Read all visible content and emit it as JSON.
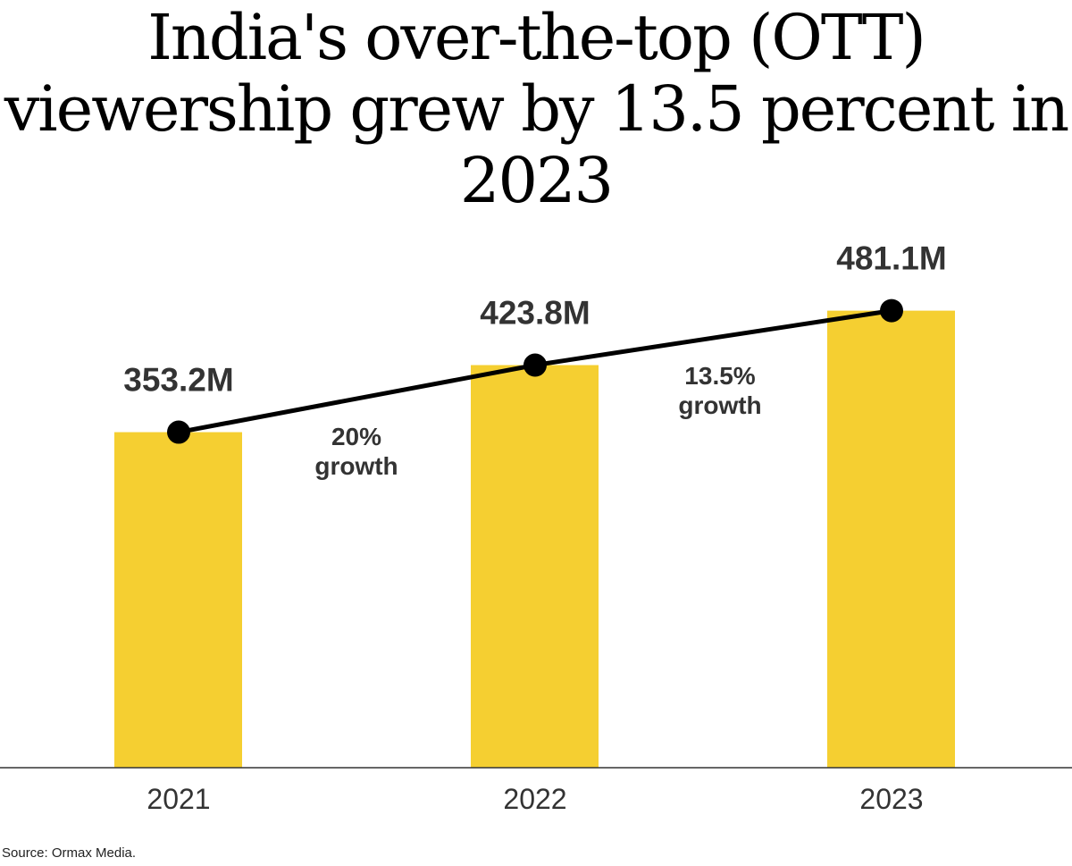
{
  "chart_data": {
    "type": "bar",
    "title": "India's over-the-top (OTT) viewership grew by 13.5 percent in 2023",
    "categories": [
      "2021",
      "2022",
      "2023"
    ],
    "values": [
      353.2,
      423.8,
      481.1
    ],
    "value_labels": [
      "353.2M",
      "423.8M",
      "481.1M"
    ],
    "unit": "M",
    "overlay_line": true,
    "annotations": [
      {
        "between": [
          "2021",
          "2022"
        ],
        "lines": [
          "20%",
          "growth"
        ]
      },
      {
        "between": [
          "2022",
          "2023"
        ],
        "lines": [
          "13.5%",
          "growth"
        ]
      }
    ],
    "ylim": [
      0,
      540
    ],
    "grid": false,
    "colors": {
      "bar": "#F5CF31",
      "line": "#000000",
      "text": "#333333"
    }
  },
  "source": "Source: Ormax Media."
}
